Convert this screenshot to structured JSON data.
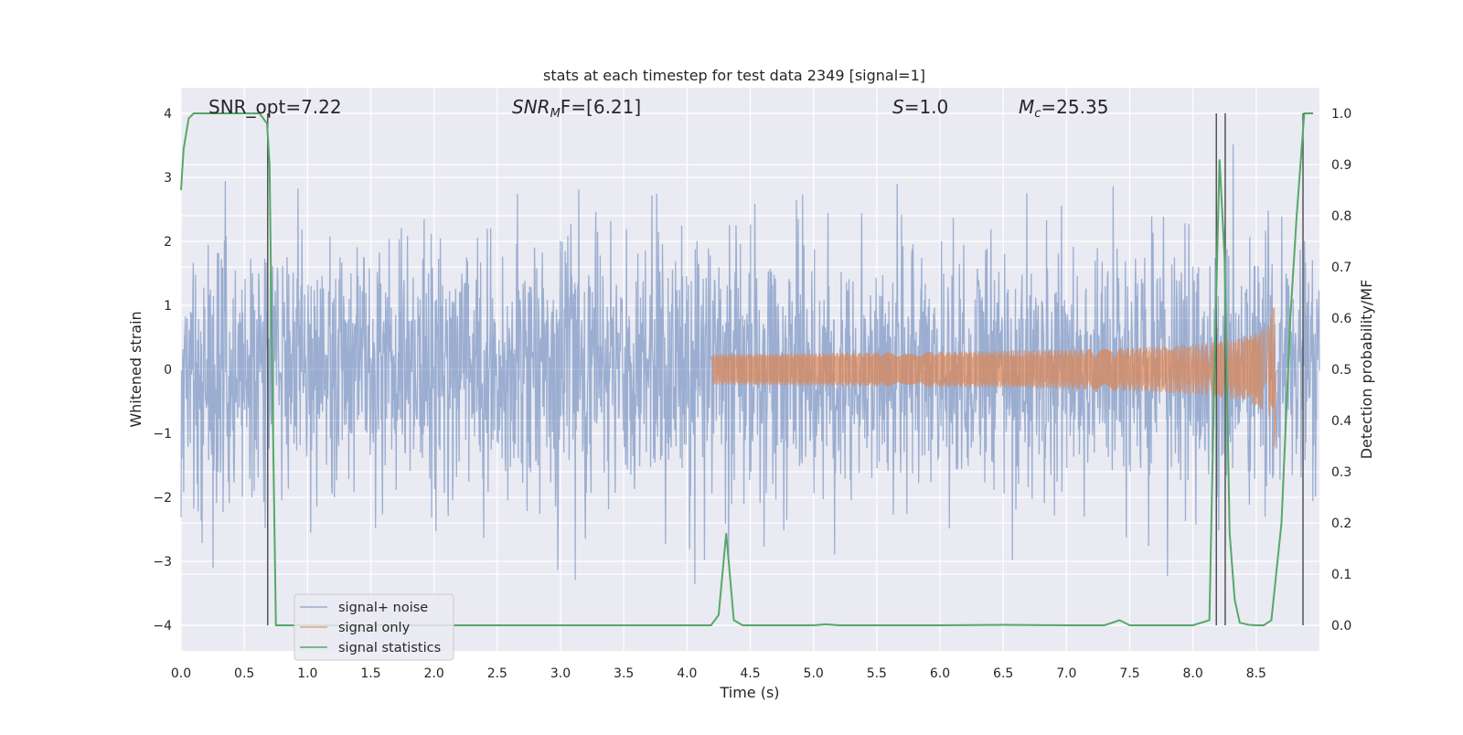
{
  "chart_data": {
    "type": "line",
    "title": "stats at each timestep for test data 2349 [signal=1]",
    "xlabel": "Time (s)",
    "ylabel_left": "Whitened strain",
    "ylabel_right": "Detection probability/MF",
    "xlim": [
      0,
      9.0
    ],
    "ylim_left": [
      -4.4,
      4.4
    ],
    "ylim_right": [
      -0.05,
      1.05
    ],
    "x_ticks": [
      "0.0",
      "0.5",
      "1.0",
      "1.5",
      "2.0",
      "2.5",
      "3.0",
      "3.5",
      "4.0",
      "4.5",
      "5.0",
      "5.5",
      "6.0",
      "6.5",
      "7.0",
      "7.5",
      "8.0",
      "8.5"
    ],
    "x_tick_values": [
      0,
      0.5,
      1,
      1.5,
      2,
      2.5,
      3,
      3.5,
      4,
      4.5,
      5,
      5.5,
      6,
      6.5,
      7,
      7.5,
      8,
      8.5
    ],
    "y_left_ticks": [
      "4",
      "3",
      "2",
      "1",
      "0",
      "−1",
      "−2",
      "−3",
      "−4"
    ],
    "y_left_tick_values": [
      4,
      3,
      2,
      1,
      0,
      -1,
      -2,
      -3,
      -4
    ],
    "y_right_ticks": [
      "1.0",
      "0.9",
      "0.8",
      "0.7",
      "0.6",
      "0.5",
      "0.4",
      "0.3",
      "0.2",
      "0.1",
      "0.0"
    ],
    "y_right_tick_values": [
      1.0,
      0.9,
      0.8,
      0.7,
      0.6,
      0.5,
      0.4,
      0.3,
      0.2,
      0.1,
      0.0
    ],
    "grid": true,
    "legend_position": "lower-left",
    "annotations": {
      "snr_opt": "SNR_opt=7.22",
      "snr_mf_main": "SNR",
      "snr_mf_sub": "M",
      "snr_mf_rest": "F=[6.21]",
      "s_main": "S",
      "s_rest": "=1.0",
      "mc_main": "M",
      "mc_sub": "c",
      "mc_rest": "=25.35"
    },
    "series": [
      {
        "name": "signal+ noise",
        "color": "#4c72b0",
        "kind": "noise",
        "duration": 9.0,
        "std": 1.0,
        "ylim_clip": [
          -4.0,
          4.0
        ]
      },
      {
        "name": "signal only",
        "color": "#dd8452",
        "kind": "chirp",
        "t_start": 4.2,
        "t_merge": 8.65,
        "t_end": 8.67,
        "peak_amplitude": 1.4
      },
      {
        "name": "signal statistics",
        "color": "#55a868",
        "axis": "right",
        "x": [
          0.0,
          0.02,
          0.06,
          0.1,
          0.6,
          0.62,
          0.68,
          0.7,
          0.72,
          0.75,
          0.8,
          0.9,
          1.5,
          2.0,
          2.5,
          3.0,
          3.5,
          4.0,
          4.19,
          4.25,
          4.31,
          4.37,
          4.44,
          4.6,
          5.0,
          5.1,
          5.2,
          6.0,
          6.5,
          7.0,
          7.3,
          7.42,
          7.5,
          8.0,
          8.13,
          8.17,
          8.21,
          8.25,
          8.29,
          8.33,
          8.37,
          8.44,
          8.5,
          8.56,
          8.62,
          8.7,
          8.77,
          8.82,
          8.88,
          8.95
        ],
        "y": [
          0.85,
          0.93,
          0.99,
          1.0,
          1.0,
          1.0,
          0.98,
          0.9,
          0.5,
          0.0,
          0.0,
          0.0,
          0.0,
          0.0,
          0.0,
          0.0,
          0.0,
          0.0,
          0.0,
          0.02,
          0.18,
          0.01,
          0.0,
          0.0,
          0.0,
          0.002,
          0.0,
          0.0,
          0.001,
          0.0,
          0.0,
          0.01,
          0.0,
          0.0,
          0.01,
          0.5,
          0.91,
          0.72,
          0.18,
          0.05,
          0.005,
          0.001,
          0.0,
          0.0,
          0.01,
          0.2,
          0.6,
          0.8,
          1.0,
          1.0
        ]
      }
    ],
    "vertical_lines": [
      0.685,
      8.185,
      8.255,
      8.87
    ]
  }
}
